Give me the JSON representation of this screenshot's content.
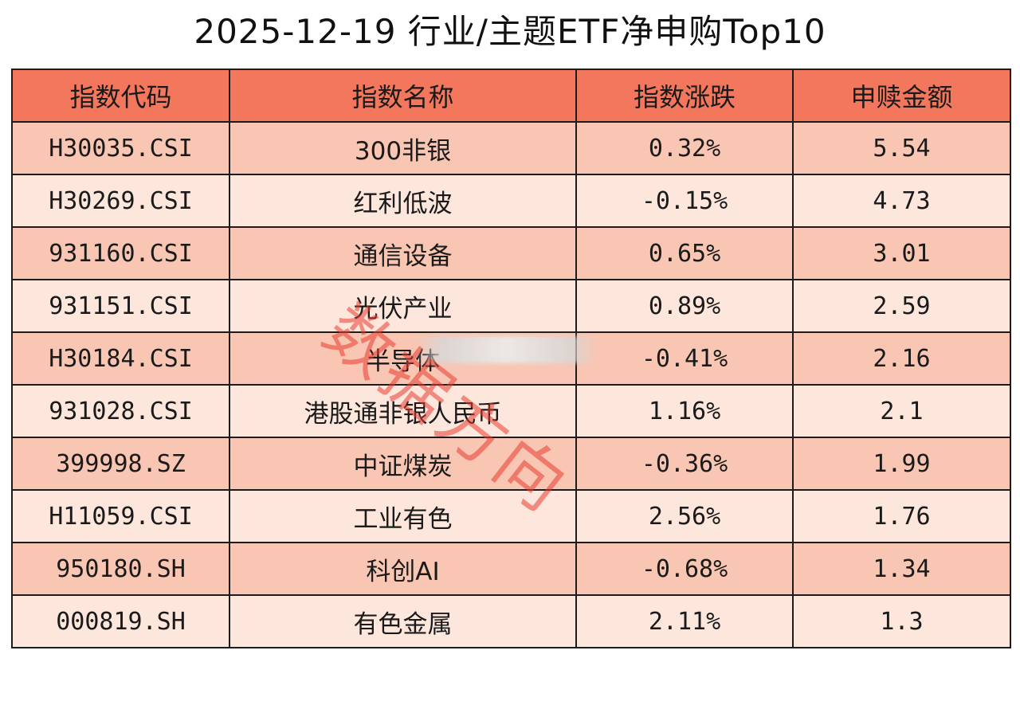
{
  "title": "2025-12-19 行业/主题ETF净申购Top10",
  "watermark": "数据方向",
  "chart_data": {
    "type": "table",
    "title": "2025-12-19 行业/主题ETF净申购Top10",
    "columns": [
      "指数代码",
      "指数名称",
      "指数涨跌",
      "申赎金额"
    ],
    "rows": [
      [
        "H30035.CSI",
        "300非银",
        "0.32%",
        "5.54"
      ],
      [
        "H30269.CSI",
        "红利低波",
        "-0.15%",
        "4.73"
      ],
      [
        "931160.CSI",
        "通信设备",
        "0.65%",
        "3.01"
      ],
      [
        "931151.CSI",
        "光伏产业",
        "0.89%",
        "2.59"
      ],
      [
        "H30184.CSI",
        "半导体",
        "-0.41%",
        "2.16"
      ],
      [
        "931028.CSI",
        "港股通非银人民币",
        "1.16%",
        "2.1"
      ],
      [
        "399998.SZ",
        "中证煤炭",
        "-0.36%",
        "1.99"
      ],
      [
        "H11059.CSI",
        "工业有色",
        "2.56%",
        "1.76"
      ],
      [
        "950180.SH",
        "科创AI",
        "-0.68%",
        "1.34"
      ],
      [
        "000819.SH",
        "有色金属",
        "2.11%",
        "1.3"
      ]
    ]
  },
  "colors": {
    "header_bg": "#f3775c",
    "row_odd_bg": "#f8c6b2",
    "row_even_bg": "#fde6dc",
    "watermark": "#e83c32"
  }
}
